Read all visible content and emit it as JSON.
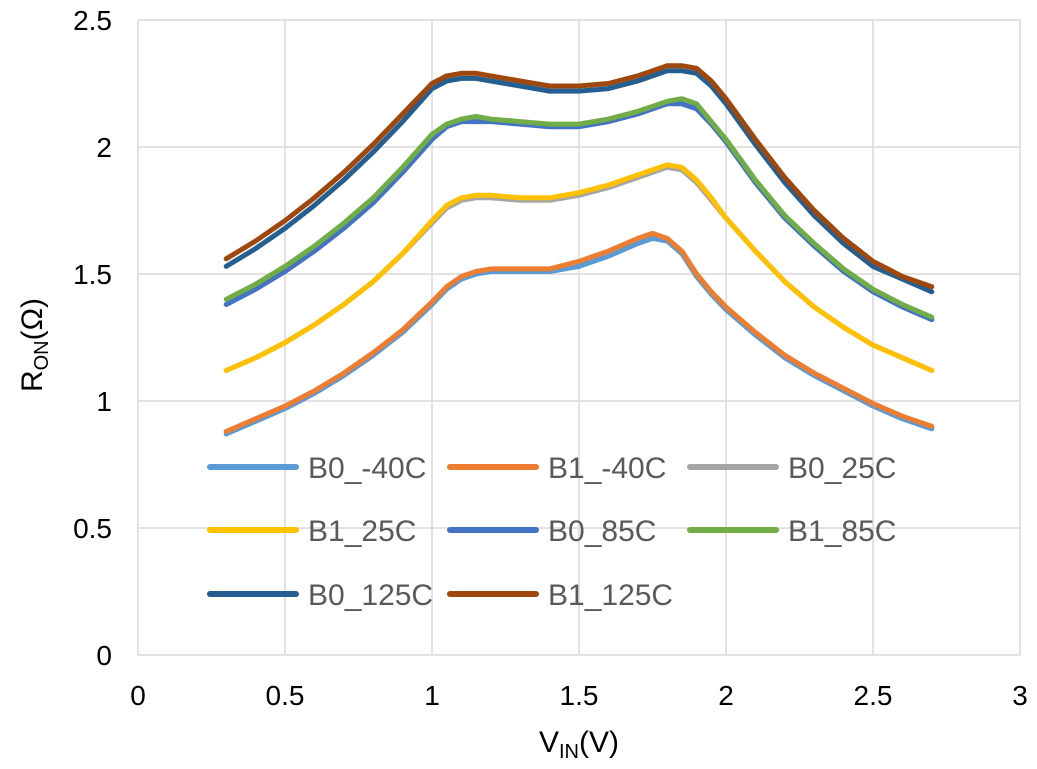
{
  "chart_data": {
    "type": "line",
    "title": "",
    "xlabel": {
      "main": "V",
      "sub": "IN",
      "suffix": "(V)"
    },
    "ylabel": {
      "main": "R",
      "sub": "ON",
      "suffix": "(Ω)"
    },
    "xlim": [
      0,
      3
    ],
    "ylim": [
      0,
      2.5
    ],
    "x_ticks": [
      0,
      0.5,
      1,
      1.5,
      2,
      2.5,
      3
    ],
    "y_ticks": [
      0,
      0.5,
      1,
      1.5,
      2,
      2.5
    ],
    "x_tick_labels": [
      "0",
      "0.5",
      "1",
      "1.5",
      "2",
      "2.5",
      "3"
    ],
    "y_tick_labels": [
      "0",
      "0.5",
      "1",
      "1.5",
      "2",
      "2.5"
    ],
    "grid": true,
    "legend_position": "inside-lower-left",
    "x": [
      0.3,
      0.4,
      0.5,
      0.6,
      0.7,
      0.8,
      0.9,
      1.0,
      1.05,
      1.1,
      1.15,
      1.2,
      1.3,
      1.4,
      1.5,
      1.6,
      1.7,
      1.75,
      1.8,
      1.85,
      1.9,
      1.95,
      2.0,
      2.1,
      2.2,
      2.3,
      2.4,
      2.5,
      2.6,
      2.7
    ],
    "series": [
      {
        "name": "B0_-40C",
        "color": "#5B9BD5",
        "values": [
          0.87,
          0.92,
          0.97,
          1.03,
          1.1,
          1.18,
          1.27,
          1.38,
          1.44,
          1.48,
          1.5,
          1.51,
          1.51,
          1.51,
          1.53,
          1.57,
          1.62,
          1.64,
          1.63,
          1.58,
          1.49,
          1.42,
          1.36,
          1.26,
          1.17,
          1.1,
          1.04,
          0.98,
          0.93,
          0.89
        ]
      },
      {
        "name": "B1_-40C",
        "color": "#ED7D31",
        "values": [
          0.88,
          0.93,
          0.98,
          1.04,
          1.11,
          1.19,
          1.28,
          1.39,
          1.45,
          1.49,
          1.51,
          1.52,
          1.52,
          1.52,
          1.55,
          1.59,
          1.64,
          1.66,
          1.64,
          1.59,
          1.5,
          1.43,
          1.37,
          1.27,
          1.18,
          1.11,
          1.05,
          0.99,
          0.94,
          0.9
        ]
      },
      {
        "name": "B0_25C",
        "color": "#A5A5A5",
        "values": [
          1.12,
          1.17,
          1.23,
          1.3,
          1.38,
          1.47,
          1.58,
          1.7,
          1.76,
          1.79,
          1.8,
          1.8,
          1.79,
          1.79,
          1.81,
          1.84,
          1.88,
          1.9,
          1.92,
          1.91,
          1.86,
          1.79,
          1.72,
          1.59,
          1.47,
          1.37,
          1.29,
          1.22,
          1.17,
          1.12
        ]
      },
      {
        "name": "B1_25C",
        "color": "#FFC000",
        "values": [
          1.12,
          1.17,
          1.23,
          1.3,
          1.38,
          1.47,
          1.58,
          1.71,
          1.77,
          1.8,
          1.81,
          1.81,
          1.8,
          1.8,
          1.82,
          1.85,
          1.89,
          1.91,
          1.93,
          1.92,
          1.87,
          1.8,
          1.72,
          1.59,
          1.47,
          1.37,
          1.29,
          1.22,
          1.17,
          1.12
        ]
      },
      {
        "name": "B0_85C",
        "color": "#4472C4",
        "values": [
          1.38,
          1.44,
          1.51,
          1.59,
          1.68,
          1.78,
          1.9,
          2.03,
          2.08,
          2.1,
          2.1,
          2.1,
          2.09,
          2.08,
          2.08,
          2.1,
          2.13,
          2.15,
          2.17,
          2.17,
          2.15,
          2.09,
          2.02,
          1.86,
          1.72,
          1.61,
          1.51,
          1.43,
          1.37,
          1.32
        ]
      },
      {
        "name": "B1_85C",
        "color": "#70AD47",
        "values": [
          1.4,
          1.46,
          1.53,
          1.61,
          1.7,
          1.8,
          1.92,
          2.05,
          2.09,
          2.11,
          2.12,
          2.11,
          2.1,
          2.09,
          2.09,
          2.11,
          2.14,
          2.16,
          2.18,
          2.19,
          2.17,
          2.1,
          2.03,
          1.87,
          1.73,
          1.62,
          1.52,
          1.44,
          1.38,
          1.33
        ]
      },
      {
        "name": "B0_125C",
        "color": "#255E91",
        "values": [
          1.53,
          1.6,
          1.68,
          1.77,
          1.87,
          1.98,
          2.1,
          2.23,
          2.26,
          2.27,
          2.27,
          2.26,
          2.24,
          2.22,
          2.22,
          2.23,
          2.26,
          2.28,
          2.3,
          2.3,
          2.29,
          2.24,
          2.17,
          2.01,
          1.86,
          1.73,
          1.62,
          1.53,
          1.48,
          1.43
        ]
      },
      {
        "name": "B1_125C",
        "color": "#9E480E",
        "values": [
          1.56,
          1.63,
          1.71,
          1.8,
          1.9,
          2.01,
          2.13,
          2.25,
          2.28,
          2.29,
          2.29,
          2.28,
          2.26,
          2.24,
          2.24,
          2.25,
          2.28,
          2.3,
          2.32,
          2.32,
          2.31,
          2.26,
          2.19,
          2.03,
          1.88,
          1.75,
          1.64,
          1.55,
          1.49,
          1.45
        ]
      }
    ]
  }
}
